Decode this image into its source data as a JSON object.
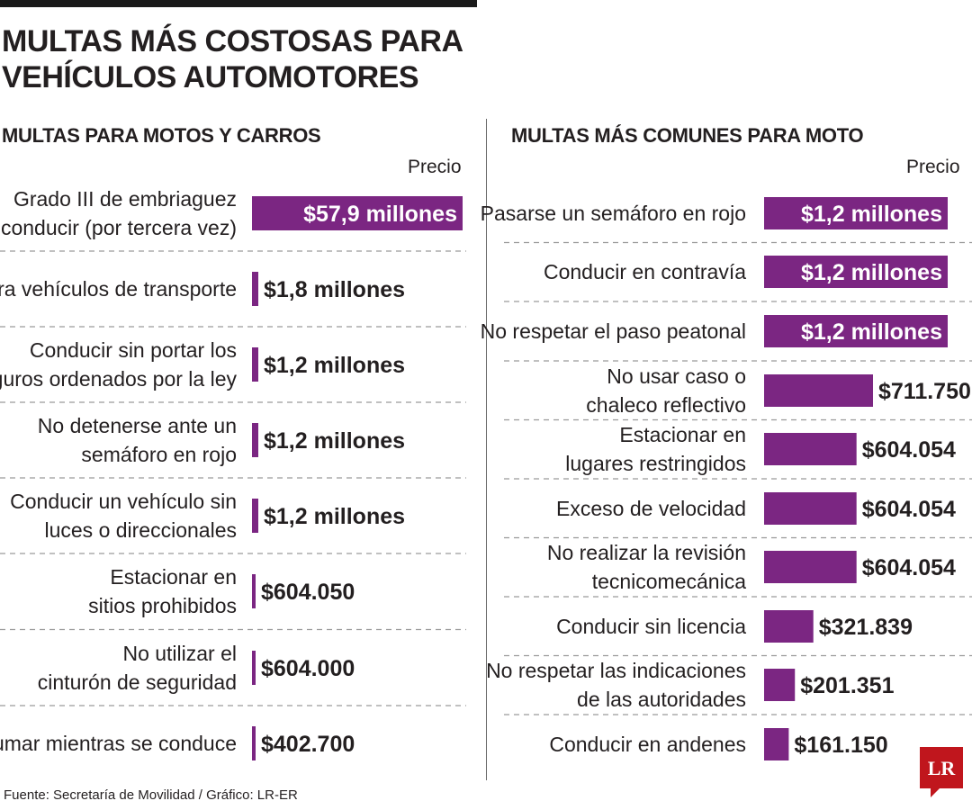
{
  "title_line1": "MULTAS MÁS COSTOSAS PARA",
  "title_line2": "VEHÍCULOS AUTOMOTORES",
  "source": "Fuente: Secretaría de Movilidad / Gráfico: LR-ER",
  "logo_text": "LR",
  "colors": {
    "bar": "#7b2682",
    "text": "#231f20",
    "dash": "#9a9a9a"
  },
  "chart_data": [
    {
      "type": "bar",
      "orientation": "horizontal",
      "title": "MULTAS PARA MOTOS Y CARROS",
      "value_header": "Precio",
      "unit": "COP",
      "categories": [
        [
          "Grado III de embriaguez",
          "al conducir (por tercera vez)"
        ],
        [
          "Para vehículos de transporte"
        ],
        [
          "Conducir sin portar los",
          "seguros ordenados por la ley"
        ],
        [
          "No detenerse ante un",
          "semáforo en rojo"
        ],
        [
          "Conducir un vehículo sin",
          "luces o direccionales"
        ],
        [
          "Estacionar en",
          "sitios prohibidos"
        ],
        [
          "No utilizar el",
          "cinturón de seguridad"
        ],
        [
          "Fumar mientras se conduce"
        ]
      ],
      "values": [
        57900000,
        1800000,
        1200000,
        1200000,
        1200000,
        604050,
        604000,
        402700
      ],
      "value_labels": [
        "$57,9 millones",
        "$1,8 millones",
        "$1,2 millones",
        "$1,2 millones",
        "$1,2 millones",
        "$604.050",
        "$604.000",
        "$402.700"
      ]
    },
    {
      "type": "bar",
      "orientation": "horizontal",
      "title": "MULTAS MÁS COMUNES PARA MOTO",
      "value_header": "Precio",
      "unit": "COP",
      "categories": [
        [
          "Pasarse un semáforo en rojo"
        ],
        [
          "Conducir en contravía"
        ],
        [
          "No respetar el paso peatonal"
        ],
        [
          "No usar caso o",
          "chaleco reflectivo"
        ],
        [
          "Estacionar en",
          "lugares restringidos"
        ],
        [
          "Exceso de velocidad"
        ],
        [
          "No realizar la revisión",
          "tecnicomecánica"
        ],
        [
          "Conducir sin licencia"
        ],
        [
          "No respetar las indicaciones",
          "de las autoridades"
        ],
        [
          "Conducir en andenes"
        ]
      ],
      "values": [
        1200000,
        1200000,
        1200000,
        711750,
        604054,
        604054,
        604054,
        321839,
        201351,
        161150
      ],
      "value_labels": [
        "$1,2 millones",
        "$1,2 millones",
        "$1,2 millones",
        "$711.750",
        "$604.054",
        "$604.054",
        "$604.054",
        "$321.839",
        "$201.351",
        "$161.150"
      ]
    }
  ]
}
